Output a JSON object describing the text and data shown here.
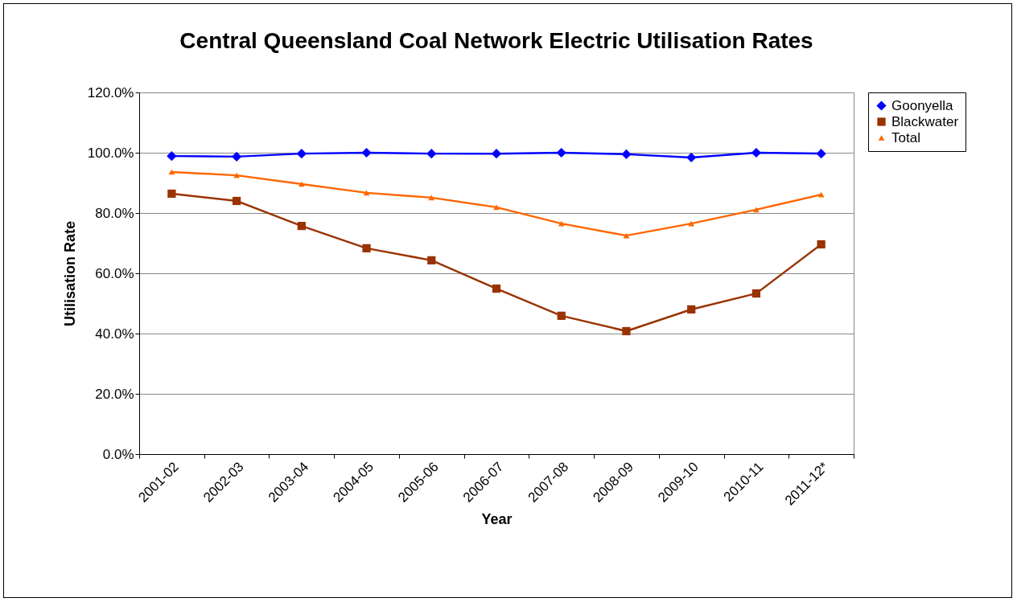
{
  "chart_data": {
    "type": "line",
    "title": "Central Queensland Coal Network Electric Utilisation Rates",
    "xlabel": "Year",
    "ylabel": "Utilisation Rate",
    "categories": [
      "2001-02",
      "2002-03",
      "2003-04",
      "2004-05",
      "2005-06",
      "2006-07",
      "2007-08",
      "2008-09",
      "2009-10",
      "2010-11",
      "2011-12*"
    ],
    "series": [
      {
        "name": "Goonyella",
        "color": "#0000ff",
        "marker": "diamond",
        "values": [
          98.9,
          98.7,
          99.7,
          100.0,
          99.7,
          99.7,
          100.0,
          99.5,
          98.4,
          100.0,
          99.7
        ]
      },
      {
        "name": "Blackwater",
        "color": "#993300",
        "marker": "square",
        "values": [
          86.4,
          84.0,
          75.7,
          68.3,
          64.3,
          54.9,
          45.9,
          40.8,
          48.0,
          53.3,
          69.6
        ]
      },
      {
        "name": "Total",
        "color": "#ff6600",
        "marker": "triangle",
        "values": [
          93.6,
          92.5,
          89.6,
          86.7,
          85.1,
          81.9,
          76.5,
          72.5,
          76.5,
          81.1,
          86.1
        ]
      }
    ],
    "ylim": [
      0,
      120
    ],
    "yticks": [
      {
        "value": 0,
        "label": "0.0%"
      },
      {
        "value": 20,
        "label": "20.0%"
      },
      {
        "value": 40,
        "label": "40.0%"
      },
      {
        "value": 60,
        "label": "60.0%"
      },
      {
        "value": 80,
        "label": "80.0%"
      },
      {
        "value": 100,
        "label": "100.0%"
      },
      {
        "value": 120,
        "label": "120.0%"
      }
    ],
    "grid": "y",
    "legend": "right"
  }
}
